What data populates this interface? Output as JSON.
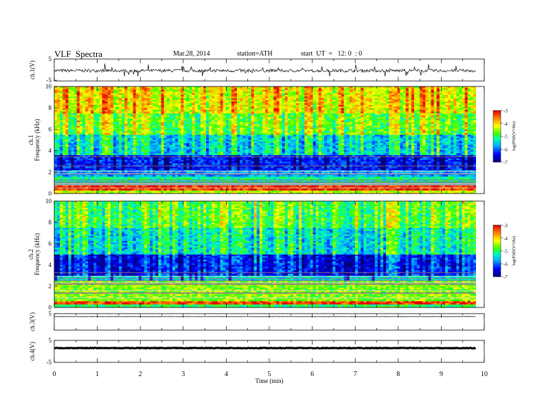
{
  "header": {
    "title": "VLF  Spectra",
    "date": "Mar.28, 2014",
    "station": "station=ATH",
    "start": "start  UT  =   12: 0  : 0"
  },
  "chart_data": [
    {
      "type": "line",
      "panel": "ch1-waveform",
      "ylabel": "ch.1(V)",
      "ylim": [
        -5,
        5
      ],
      "yticks": [
        "5",
        "-5"
      ],
      "xlim": [
        0,
        10
      ],
      "trace_level": -0.3,
      "color": "#000000"
    },
    {
      "type": "heatmap",
      "panel": "ch1-spectrogram",
      "ylabel": "ch.1\nFrequency  (kHz)",
      "ylim": [
        0,
        10
      ],
      "yticks": [
        "0",
        "2",
        "4",
        "6",
        "8",
        "10"
      ],
      "xlim": [
        0,
        9.8
      ],
      "colorbar": {
        "label": "log(PSD(V²/Hz)",
        "range": [
          -7,
          -3
        ],
        "ticks": [
          "-3",
          "-4",
          "-5",
          "-6",
          "-7"
        ]
      },
      "bands": [
        {
          "from_khz": 0.0,
          "to_khz": 0.3,
          "log_psd": -4.4
        },
        {
          "from_khz": 0.3,
          "to_khz": 0.8,
          "log_psd": -3.2
        },
        {
          "from_khz": 0.8,
          "to_khz": 1.6,
          "log_psd": -5.2
        },
        {
          "from_khz": 1.6,
          "to_khz": 2.2,
          "log_psd": -5.8
        },
        {
          "from_khz": 2.2,
          "to_khz": 3.6,
          "log_psd": -6.3
        },
        {
          "from_khz": 3.6,
          "to_khz": 5.5,
          "log_psd": -5.1
        },
        {
          "from_khz": 5.5,
          "to_khz": 7.5,
          "log_psd": -4.3
        },
        {
          "from_khz": 7.5,
          "to_khz": 10.0,
          "log_psd": -3.8
        }
      ]
    },
    {
      "type": "heatmap",
      "panel": "ch2-spectrogram",
      "ylabel": "ch.2\nFrequency  (kHz)",
      "ylim": [
        0,
        10
      ],
      "yticks": [
        "0",
        "2",
        "4",
        "6",
        "8",
        "10"
      ],
      "xlim": [
        0,
        9.8
      ],
      "colorbar": {
        "label": "log(PSD(V²/Hz)",
        "range": [
          -7,
          -3
        ],
        "ticks": [
          "-3",
          "-4",
          "-5",
          "-6",
          "-7"
        ]
      },
      "bands": [
        {
          "from_khz": 0.0,
          "to_khz": 0.3,
          "log_psd": -5.0
        },
        {
          "from_khz": 0.3,
          "to_khz": 0.6,
          "log_psd": -3.3
        },
        {
          "from_khz": 0.6,
          "to_khz": 2.5,
          "log_psd": -4.6
        },
        {
          "from_khz": 2.5,
          "to_khz": 3.0,
          "log_psd": -5.4
        },
        {
          "from_khz": 3.0,
          "to_khz": 5.0,
          "log_psd": -6.1
        },
        {
          "from_khz": 5.0,
          "to_khz": 7.5,
          "log_psd": -5.0
        },
        {
          "from_khz": 7.5,
          "to_khz": 10.0,
          "log_psd": -4.5
        }
      ]
    },
    {
      "type": "line",
      "panel": "ch3-waveform",
      "ylabel": "ch.3(V)",
      "ylim": [
        -5,
        5
      ],
      "yticks": [
        "5"
      ],
      "xlim": [
        0,
        10
      ],
      "trace_level": 3.2,
      "color": "#000000"
    },
    {
      "type": "line",
      "panel": "ch4-waveform",
      "ylabel": "ch.4(V)",
      "ylim": [
        -5,
        5
      ],
      "yticks": [
        "5",
        "-5"
      ],
      "xlim": [
        0,
        10
      ],
      "trace_level": 1.5,
      "color": "#000000"
    }
  ],
  "x_axis": {
    "label": "Time  (min)",
    "ticks": [
      "0",
      "1",
      "2",
      "3",
      "4",
      "5",
      "6",
      "7",
      "8",
      "9",
      "10"
    ],
    "range": [
      0,
      10
    ]
  }
}
